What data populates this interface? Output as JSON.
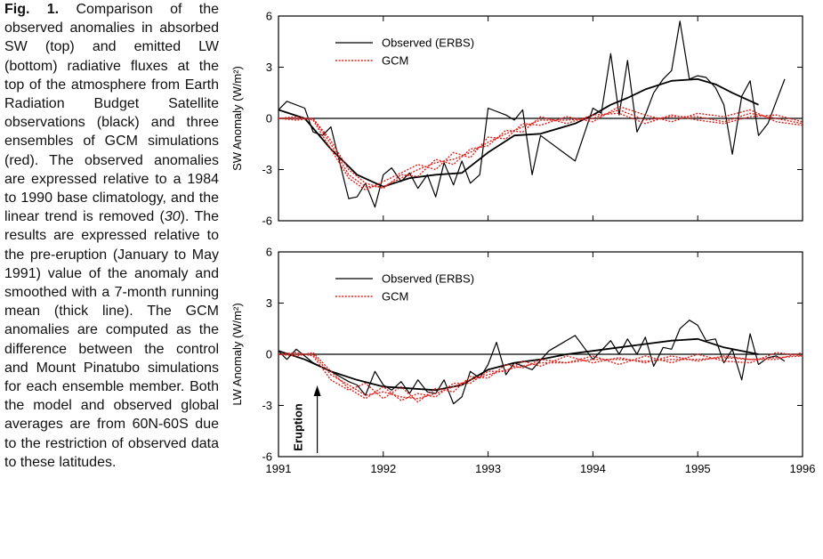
{
  "chart_data": [
    {
      "type": "line",
      "ylabel": "SW Anomaly (W/m²)",
      "xlim": [
        1991,
        1996
      ],
      "ylim": [
        -6,
        6
      ],
      "yticks": [
        -6,
        -3,
        0,
        3,
        6
      ],
      "xticks": [
        1991,
        1992,
        1993,
        1994,
        1995,
        1996
      ],
      "xtick_labels": false,
      "zero_line": true,
      "legend": "upper left",
      "series": [
        {
          "name": "Observed (ERBS)",
          "color": "#000000",
          "style": "solid",
          "width": 1.2,
          "x": [
            1991,
            1991.08,
            1991.25,
            1991.33,
            1991.42,
            1991.5,
            1991.67,
            1991.75,
            1991.83,
            1991.92,
            1992,
            1992.08,
            1992.17,
            1992.25,
            1992.33,
            1992.42,
            1992.5,
            1992.58,
            1992.67,
            1992.75,
            1992.83,
            1992.92,
            1993,
            1993.17,
            1993.25,
            1993.33,
            1993.42,
            1993.5,
            1993.83,
            1994,
            1994.08,
            1994.17,
            1994.25,
            1994.33,
            1994.42,
            1994.5,
            1994.58,
            1994.67,
            1994.75,
            1994.83,
            1994.92,
            1995,
            1995.08,
            1995.17,
            1995.25,
            1995.33,
            1995.42,
            1995.5,
            1995.58,
            1995.67,
            1995.75,
            1995.83
          ],
          "values": [
            0.5,
            1.0,
            0.6,
            -0.8,
            -1.0,
            -0.5,
            -4.7,
            -4.6,
            -3.8,
            -5.2,
            -3.3,
            -2.9,
            -3.7,
            -3.2,
            -4.1,
            -3.3,
            -4.6,
            -2.6,
            -3.9,
            -2.5,
            -3.8,
            -3.3,
            0.6,
            0.2,
            -0.1,
            0.5,
            -3.3,
            -1.0,
            -2.5,
            0.6,
            0.3,
            3.8,
            0.2,
            3.4,
            -0.8,
            0.2,
            1.5,
            2.3,
            2.8,
            5.7,
            2.3,
            2.5,
            2.4,
            1.8,
            0.8,
            -2.1,
            1.3,
            2.2,
            -1.0,
            -0.3,
            1.0,
            2.3
          ]
        },
        {
          "color": "#000000",
          "style": "solid",
          "width": 1.8,
          "x": [
            1991,
            1991.25,
            1991.5,
            1991.75,
            1992,
            1992.25,
            1992.5,
            1992.75,
            1993,
            1993.25,
            1993.5,
            1993.83,
            1994,
            1994.17,
            1994.33,
            1994.5,
            1994.75,
            1995,
            1995.17,
            1995.33,
            1995.58
          ],
          "values": [
            0.5,
            0,
            -1.8,
            -3.3,
            -4.0,
            -3.5,
            -3.3,
            -3.2,
            -2.0,
            -1.0,
            -0.9,
            -0.3,
            0.2,
            0.8,
            1.2,
            1.7,
            2.2,
            2.3,
            2.0,
            1.5,
            0.8
          ]
        },
        {
          "name": "GCM",
          "color": "#e0201b",
          "style": "dotted",
          "width": 1.4,
          "x": [
            1991,
            1991.17,
            1991.33,
            1991.5,
            1991.67,
            1991.83,
            1992,
            1992.17,
            1992.33,
            1992.5,
            1992.67,
            1992.83,
            1993,
            1993.17,
            1993.33,
            1993.5,
            1993.75,
            1994,
            1994.25,
            1994.5,
            1994.75,
            1995,
            1995.25,
            1995.5,
            1995.75,
            1996
          ],
          "values": [
            0,
            0,
            0,
            -1.5,
            -3.3,
            -4.0,
            -4.0,
            -3.5,
            -3.0,
            -2.6,
            -2.4,
            -2.0,
            -1.4,
            -0.9,
            -0.5,
            -0.1,
            -0.1,
            0,
            0.5,
            -0.1,
            0.1,
            0.1,
            -0.2,
            0.3,
            0,
            -0.3
          ]
        },
        {
          "color": "#e0201b",
          "style": "dotted",
          "width": 1.4,
          "x": [
            1991,
            1991.17,
            1991.33,
            1991.5,
            1991.67,
            1991.83,
            1992,
            1992.17,
            1992.33,
            1992.5,
            1992.67,
            1992.83,
            1993,
            1993.17,
            1993.33,
            1993.5,
            1993.75,
            1994,
            1994.25,
            1994.5,
            1994.75,
            1995,
            1995.25,
            1995.5,
            1995.75,
            1996
          ],
          "values": [
            0,
            0.1,
            -0.1,
            -1.8,
            -3.5,
            -4.2,
            -3.7,
            -3.2,
            -2.7,
            -3.0,
            -2.0,
            -2.3,
            -1.1,
            -1.2,
            -0.3,
            -0.4,
            0.1,
            -0.2,
            0.7,
            0.2,
            -0.2,
            0.3,
            0.1,
            0.5,
            -0.2,
            -0.4
          ]
        },
        {
          "color": "#e0201b",
          "style": "dotted",
          "width": 1.4,
          "x": [
            1991,
            1991.17,
            1991.33,
            1991.5,
            1991.67,
            1991.83,
            1992,
            1992.17,
            1992.33,
            1992.5,
            1992.67,
            1992.83,
            1993,
            1993.17,
            1993.33,
            1993.5,
            1993.75,
            1994,
            1994.25,
            1994.5,
            1994.75,
            1995,
            1995.25,
            1995.5,
            1995.75,
            1996
          ],
          "values": [
            0,
            -0.1,
            0,
            -1.3,
            -3.0,
            -3.8,
            -4.1,
            -3.3,
            -3.4,
            -2.4,
            -2.7,
            -1.8,
            -1.6,
            -0.7,
            -0.8,
            0.1,
            -0.3,
            0.2,
            0.3,
            -0.3,
            0.2,
            -0.1,
            -0.3,
            0.1,
            0.2,
            -0.2
          ]
        }
      ]
    },
    {
      "type": "line",
      "ylabel": "LW Anomaly (W/m²)",
      "xlim": [
        1991,
        1996
      ],
      "ylim": [
        -6,
        6
      ],
      "yticks": [
        -6,
        -3,
        0,
        3,
        6
      ],
      "xticks": [
        1991,
        1992,
        1993,
        1994,
        1995,
        1996
      ],
      "xtick_labels": true,
      "zero_line": true,
      "legend": "upper left",
      "annotation": {
        "text": "Eruption",
        "x": 1991.37
      },
      "series": [
        {
          "name": "Observed (ERBS)",
          "color": "#000000",
          "style": "solid",
          "width": 1.2,
          "x": [
            1991,
            1991.08,
            1991.17,
            1991.25,
            1991.33,
            1991.5,
            1991.67,
            1991.75,
            1991.83,
            1991.92,
            1992,
            1992.08,
            1992.17,
            1992.25,
            1992.33,
            1992.42,
            1992.5,
            1992.58,
            1992.67,
            1992.75,
            1992.83,
            1992.92,
            1993,
            1993.08,
            1993.17,
            1993.25,
            1993.42,
            1993.58,
            1993.83,
            1994,
            1994.17,
            1994.25,
            1994.33,
            1994.42,
            1994.5,
            1994.58,
            1994.67,
            1994.75,
            1994.83,
            1994.92,
            1995,
            1995.08,
            1995.17,
            1995.25,
            1995.33,
            1995.42,
            1995.5,
            1995.58,
            1995.67,
            1995.75,
            1995.83
          ],
          "values": [
            0.2,
            -0.3,
            0.3,
            -0.1,
            -0.5,
            -1.0,
            -1.6,
            -1.8,
            -2.4,
            -1.0,
            -1.8,
            -2.1,
            -1.6,
            -2.3,
            -1.5,
            -2.2,
            -2.3,
            -1.5,
            -2.9,
            -2.5,
            -1.0,
            -1.4,
            -0.6,
            0.7,
            -1.2,
            -0.5,
            -0.9,
            0.2,
            1.1,
            -0.3,
            0.8,
            0,
            0.9,
            0,
            1.0,
            -0.7,
            0.4,
            0.3,
            1.5,
            2.0,
            1.7,
            0.8,
            0.9,
            -0.5,
            0.3,
            -1.5,
            1.2,
            -0.6,
            -0.2,
            -0.1,
            -0.4
          ]
        },
        {
          "color": "#000000",
          "style": "solid",
          "width": 1.8,
          "x": [
            1991,
            1991.25,
            1991.5,
            1991.75,
            1992,
            1992.25,
            1992.5,
            1992.75,
            1993,
            1993.25,
            1993.5,
            1993.75,
            1994,
            1994.25,
            1994.5,
            1994.75,
            1995,
            1995.25,
            1995.5,
            1995.58
          ],
          "values": [
            0.2,
            -0.3,
            -1.0,
            -1.5,
            -1.9,
            -2.0,
            -2.1,
            -1.8,
            -0.9,
            -0.5,
            -0.3,
            0,
            0.2,
            0.4,
            0.6,
            0.8,
            0.9,
            0.4,
            0.1,
            0
          ]
        },
        {
          "name": "GCM",
          "color": "#e0201b",
          "style": "dotted",
          "width": 1.4,
          "x": [
            1991,
            1991.17,
            1991.33,
            1991.5,
            1991.67,
            1991.83,
            1992,
            1992.17,
            1992.33,
            1992.5,
            1992.67,
            1992.83,
            1993,
            1993.25,
            1993.5,
            1993.75,
            1994,
            1994.25,
            1994.5,
            1994.75,
            1995,
            1995.25,
            1995.5,
            1995.75,
            1996,
            1996
          ],
          "values": [
            0,
            0,
            0,
            -1.2,
            -1.8,
            -2.4,
            -2.2,
            -2.5,
            -2.6,
            -2.3,
            -1.9,
            -1.5,
            -1.2,
            -0.8,
            -0.5,
            -0.5,
            -0.3,
            -0.3,
            -0.4,
            -0.3,
            -0.3,
            -0.2,
            -0.3,
            -0.2,
            -0.1,
            0
          ]
        },
        {
          "color": "#e0201b",
          "style": "dotted",
          "width": 1.4,
          "x": [
            1991,
            1991.17,
            1991.33,
            1991.5,
            1991.67,
            1991.83,
            1992,
            1992.17,
            1992.33,
            1992.5,
            1992.67,
            1992.83,
            1993,
            1993.17,
            1993.33,
            1993.5,
            1993.75,
            1994,
            1994.25,
            1994.5,
            1994.75,
            1995,
            1995.25,
            1995.5,
            1995.75,
            1996
          ],
          "values": [
            0,
            0.1,
            -0.1,
            -1.5,
            -2.1,
            -1.7,
            -2.6,
            -1.9,
            -2.8,
            -2.0,
            -2.2,
            -1.3,
            -1.4,
            -0.6,
            -0.8,
            -0.3,
            -0.5,
            -0.1,
            -0.6,
            -0.1,
            -0.5,
            0,
            -0.4,
            -0.5,
            0.1,
            -0.1
          ]
        },
        {
          "color": "#e0201b",
          "style": "dotted",
          "width": 1.4,
          "x": [
            1991,
            1991.17,
            1991.33,
            1991.5,
            1991.67,
            1991.83,
            1992,
            1992.17,
            1992.33,
            1992.5,
            1992.67,
            1992.83,
            1993,
            1993.17,
            1993.33,
            1993.5,
            1993.75,
            1994,
            1994.25,
            1994.5,
            1994.75,
            1995,
            1995.25,
            1995.5,
            1995.75,
            1996
          ],
          "values": [
            0,
            -0.1,
            0.1,
            -1.0,
            -2.0,
            -2.6,
            -1.9,
            -2.7,
            -2.3,
            -2.5,
            -1.7,
            -1.7,
            -1.0,
            -1.0,
            -0.4,
            -0.7,
            -0.1,
            -0.5,
            -0.2,
            -0.5,
            -0.1,
            -0.4,
            -0.1,
            -0.3,
            -0.3,
            0.1
          ]
        }
      ]
    }
  ],
  "caption": {
    "label": "Fig. 1.",
    "text_1": "Comparison of the observed anomalies in absorbed SW (top) and emitted LW (bottom) radiative fluxes at the top of the atmosphere from Earth Radiation Budget Satellite observations (black) and three ensembles of GCM simulations (red). The observed anomalies are expressed relative to a 1984 to 1990 base climatology, and the linear trend is removed (",
    "citation": "30",
    "text_2": "). The results are expressed relative to the pre-eruption (January to May 1991) value of the anomaly and smoothed with a 7-month running mean (thick line). The GCM anomalies are computed as the difference between the control and Mount Pinatubo simulations for each ensemble member. Both the model and observed global averages are from 60N-60S due to the restriction of observed data to these latitudes."
  }
}
